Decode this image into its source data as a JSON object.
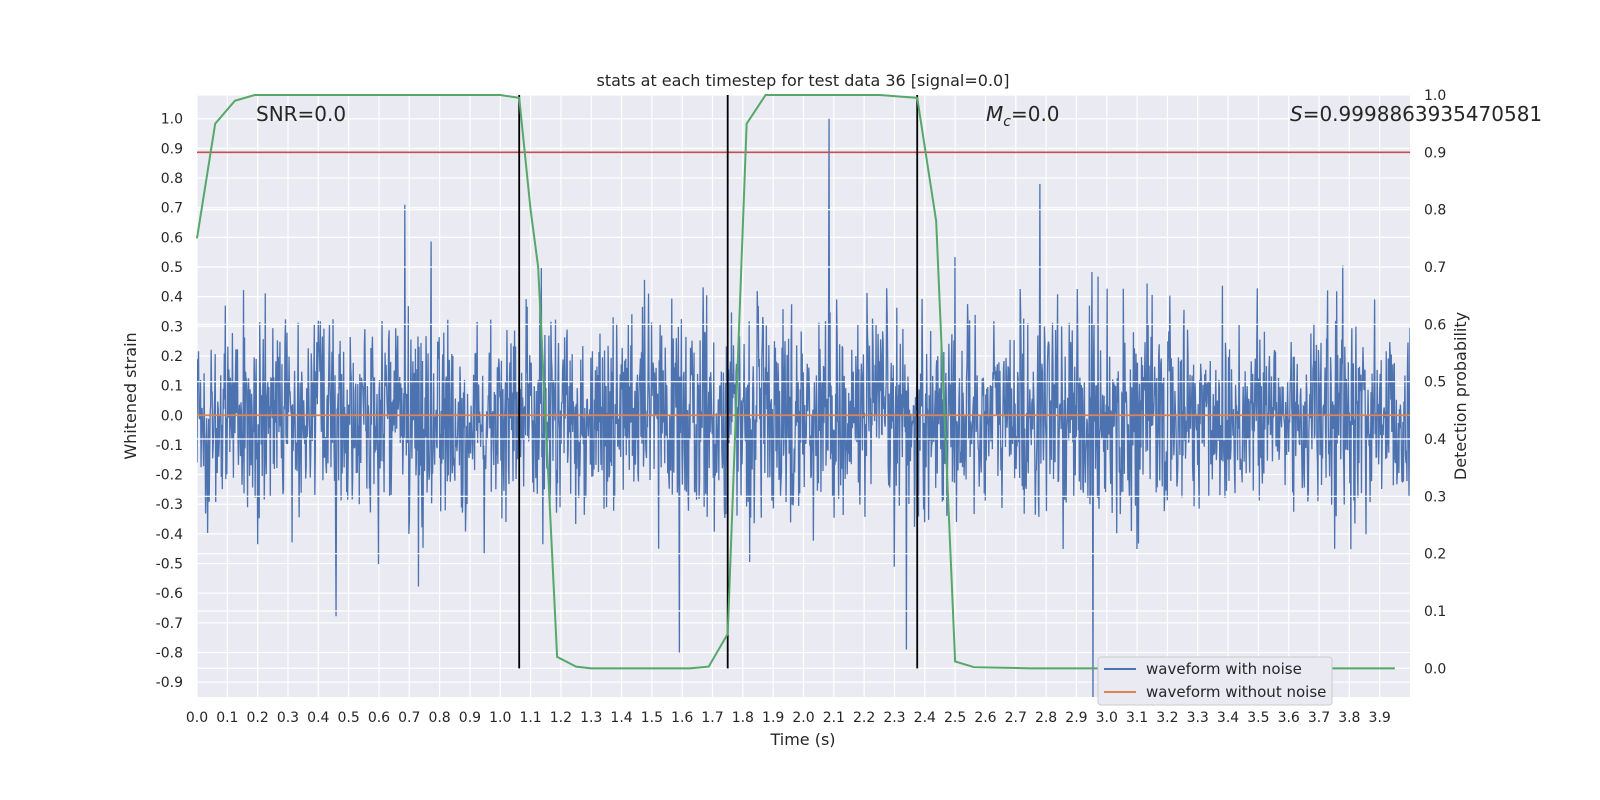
{
  "chart_data": {
    "type": "line",
    "title": "stats at each timestep for test data 36 [signal=0.0]",
    "xlabel": "Time (s)",
    "ylabel": "Whitened strain",
    "ylabel_right": "Detection probability",
    "xlim": [
      0.0,
      4.0
    ],
    "ylim": [
      -0.95,
      1.08
    ],
    "ylim_right": [
      -0.05,
      1.0
    ],
    "grid": true,
    "legend_placement": "lower-right",
    "x_ticks": [
      "0.0",
      "0.1",
      "0.2",
      "0.3",
      "0.4",
      "0.5",
      "0.6",
      "0.7",
      "0.8",
      "0.9",
      "1.0",
      "1.1",
      "1.2",
      "1.3",
      "1.4",
      "1.5",
      "1.6",
      "1.7",
      "1.8",
      "1.9",
      "2.0",
      "2.1",
      "2.2",
      "2.3",
      "2.4",
      "2.5",
      "2.6",
      "2.7",
      "2.8",
      "2.9",
      "3.0",
      "3.1",
      "3.2",
      "3.3",
      "3.4",
      "3.5",
      "3.6",
      "3.7",
      "3.8",
      "3.9"
    ],
    "y_ticks": [
      "1.0",
      "0.9",
      "0.8",
      "0.7",
      "0.6",
      "0.5",
      "0.4",
      "0.3",
      "0.2",
      "0.1",
      "0.0",
      "-0.1",
      "-0.2",
      "-0.3",
      "-0.4",
      "-0.5",
      "-0.6",
      "-0.7",
      "-0.8",
      "-0.9"
    ],
    "y_ticks_right": [
      "1.0",
      "0.9",
      "0.8",
      "0.7",
      "0.6",
      "0.5",
      "0.4",
      "0.3",
      "0.2",
      "0.1",
      "0.0"
    ],
    "annotations": {
      "snr": "SNR=0.0",
      "mc_symbol": "M",
      "mc_sub": "c",
      "mc_value": "=0.0",
      "s_symbol": "S",
      "s_value": "=0.9998863935470581"
    },
    "series": [
      {
        "name": "waveform with noise",
        "color": "#4c72b0",
        "noise_amplitude_range": [
          -0.95,
          1.0
        ],
        "notable_peaks": [
          {
            "x": 2.085,
            "y": 1.0
          },
          {
            "x": 0.685,
            "y": 0.71
          },
          {
            "x": 2.78,
            "y": 0.78
          },
          {
            "x": 2.955,
            "y": -0.97
          },
          {
            "x": 2.34,
            "y": -0.79
          }
        ]
      },
      {
        "name": "waveform without noise",
        "color": "#dd8452",
        "x": [
          0.0,
          4.0
        ],
        "y": [
          0.0,
          0.0
        ]
      },
      {
        "color": "#55a868",
        "axis": "right",
        "x": [
          0.0,
          0.06,
          0.125,
          0.19,
          0.25,
          0.5,
          0.75,
          1.0,
          1.0625,
          1.1,
          1.125,
          1.1875,
          1.25,
          1.3,
          1.5,
          1.625,
          1.6875,
          1.75,
          1.8125,
          1.875,
          2.0,
          2.25,
          2.375,
          2.4375,
          2.5,
          2.5625,
          2.75,
          3.0,
          3.5,
          3.95
        ],
        "y": [
          0.75,
          0.95,
          0.99,
          1.0,
          1.0,
          1.0,
          1.0,
          1.0,
          0.995,
          0.8,
          0.7,
          0.02,
          0.003,
          0.0,
          0.0,
          0.0,
          0.003,
          0.06,
          0.95,
          1.0,
          1.0,
          1.0,
          0.995,
          0.78,
          0.012,
          0.002,
          0.0,
          0.0,
          0.0,
          0.0
        ]
      }
    ],
    "threshold_line": {
      "color": "#c44e52",
      "axis": "right",
      "y": 0.9
    },
    "vertical_markers": {
      "color": "#000000",
      "x": [
        1.0625,
        1.75,
        2.375
      ],
      "y_range_right": [
        0.0,
        1.0
      ]
    }
  }
}
